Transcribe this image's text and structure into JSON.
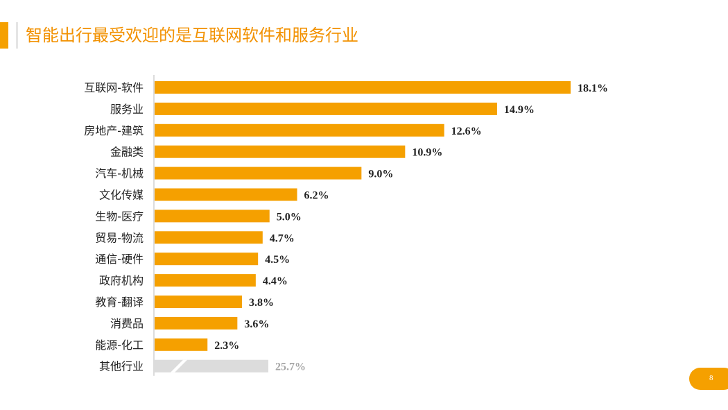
{
  "slide": {
    "title": "智能出行最受欢迎的是互联网软件和服务行业",
    "page_number": "8"
  },
  "colors": {
    "accent": "#F5A000",
    "title": "#F29100",
    "other_bar": "#DCDCDC",
    "other_label": "#A6A6A6",
    "label": "#222222"
  },
  "chart_data": {
    "type": "bar",
    "orientation": "horizontal",
    "categories": [
      "互联网-软件",
      "服务业",
      "房地产-建筑",
      "金融类",
      "汽车-机械",
      "文化传媒",
      "生物-医疗",
      "贸易-物流",
      "通信-硬件",
      "政府机构",
      "教育-翻译",
      "消费品",
      "能源-化工",
      "其他行业"
    ],
    "values": [
      18.1,
      14.9,
      12.6,
      10.9,
      9.0,
      6.2,
      5.0,
      4.7,
      4.5,
      4.4,
      3.8,
      3.6,
      2.3,
      25.7
    ],
    "value_labels": [
      "18.1%",
      "14.9%",
      "12.6%",
      "10.9%",
      "9.0%",
      "6.2%",
      "5.0%",
      "4.7%",
      "4.5%",
      "4.4%",
      "3.8%",
      "3.6%",
      "2.3%",
      "25.7%"
    ],
    "unit": "%",
    "axis_break_on_last": true,
    "grid": false,
    "legend": "none"
  }
}
